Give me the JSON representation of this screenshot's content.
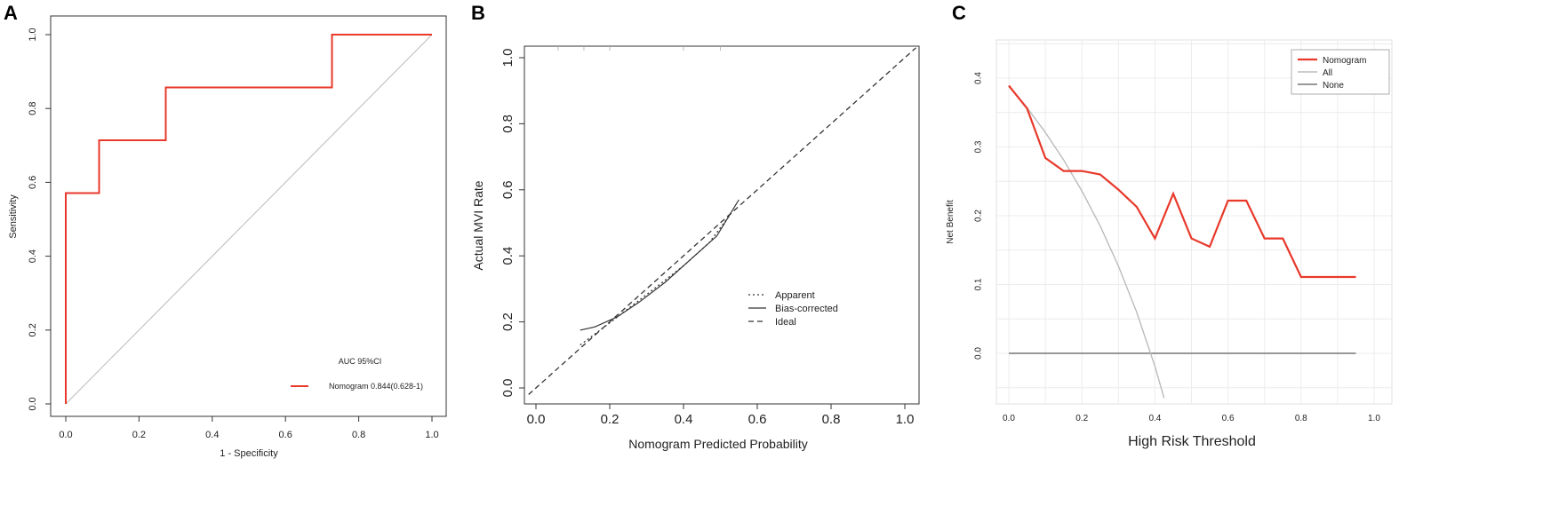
{
  "panels": {
    "a": "A",
    "b": "B",
    "c": "C"
  },
  "chart_data": [
    {
      "type": "line",
      "panel": "A",
      "xlabel": "1 - Specificity",
      "ylabel": "Sensitivity",
      "xlim": [
        0,
        1
      ],
      "ylim": [
        0,
        1
      ],
      "xticks": [
        "0.0",
        "0.2",
        "0.4",
        "0.6",
        "0.8",
        "1.0"
      ],
      "yticks": [
        "0.0",
        "0.2",
        "0.4",
        "0.6",
        "0.8",
        "1.0"
      ],
      "legend_title": "AUC 95%CI",
      "legend_position": "bottom-right",
      "series": [
        {
          "name": "Nomogram 0.844(0.628-1)",
          "color": "#e8392b",
          "x": [
            0,
            0,
            0.091,
            0.091,
            0.273,
            0.273,
            0.727,
            0.727,
            1.0
          ],
          "y": [
            0,
            0.571,
            0.571,
            0.714,
            0.714,
            0.857,
            0.857,
            1.0,
            1.0
          ]
        }
      ],
      "reference_line": {
        "x": [
          0,
          1
        ],
        "y": [
          0,
          1
        ],
        "color": "#bbbbbb"
      }
    },
    {
      "type": "line",
      "panel": "B",
      "xlabel": "Nomogram Predicted Probability",
      "ylabel": "Actual MVI Rate",
      "xlim": [
        0,
        1
      ],
      "ylim": [
        0,
        1
      ],
      "xticks": [
        "0.0",
        "0.2",
        "0.4",
        "0.6",
        "0.8",
        "1.0"
      ],
      "yticks": [
        "0.0",
        "0.2",
        "0.4",
        "0.6",
        "0.8",
        "1.0"
      ],
      "legend_position": "center-right",
      "series": [
        {
          "name": "Apparent",
          "style": "dotted",
          "x": [
            0.12,
            0.18,
            0.25,
            0.32,
            0.4,
            0.47,
            0.53
          ],
          "y": [
            0.13,
            0.18,
            0.24,
            0.3,
            0.37,
            0.44,
            0.53
          ]
        },
        {
          "name": "Bias-corrected",
          "style": "solid",
          "x": [
            0.12,
            0.16,
            0.22,
            0.28,
            0.35,
            0.42,
            0.49,
            0.55
          ],
          "y": [
            0.175,
            0.185,
            0.215,
            0.26,
            0.32,
            0.39,
            0.46,
            0.57
          ]
        },
        {
          "name": "Ideal",
          "style": "dashed",
          "x": [
            -0.02,
            1.03
          ],
          "y": [
            -0.02,
            1.03
          ]
        }
      ]
    },
    {
      "type": "line",
      "panel": "C",
      "xlabel": "High Risk Threshold",
      "ylabel": "Net Benefit",
      "xlim": [
        0,
        1
      ],
      "ylim": [
        -0.07,
        0.42
      ],
      "xticks": [
        "0.0",
        "0.2",
        "0.4",
        "0.6",
        "0.8",
        "1.0"
      ],
      "yticks": [
        "0.0",
        "0.1",
        "0.2",
        "0.3",
        "0.4"
      ],
      "grid": true,
      "legend_position": "top-right",
      "series": [
        {
          "name": "Nomogram",
          "color": "#e8392b",
          "x": [
            0,
            0.05,
            0.1,
            0.15,
            0.2,
            0.25,
            0.3,
            0.35,
            0.4,
            0.45,
            0.5,
            0.55,
            0.6,
            0.65,
            0.7,
            0.75,
            0.8,
            0.85,
            0.9,
            0.95
          ],
          "y": [
            0.389,
            0.356,
            0.284,
            0.265,
            0.265,
            0.26,
            0.238,
            0.213,
            0.167,
            0.232,
            0.167,
            0.155,
            0.222,
            0.222,
            0.167,
            0.167,
            0.111,
            0.111,
            0.111,
            0.111
          ]
        },
        {
          "name": "All",
          "color": "#bbbbbb",
          "x": [
            0,
            0.05,
            0.1,
            0.15,
            0.2,
            0.25,
            0.3,
            0.35,
            0.4,
            0.425
          ],
          "y": [
            0.389,
            0.357,
            0.321,
            0.281,
            0.236,
            0.185,
            0.127,
            0.06,
            -0.019,
            -0.065
          ]
        },
        {
          "name": "None",
          "color": "#777777",
          "x": [
            0,
            0.95
          ],
          "y": [
            0,
            0
          ]
        }
      ]
    }
  ]
}
